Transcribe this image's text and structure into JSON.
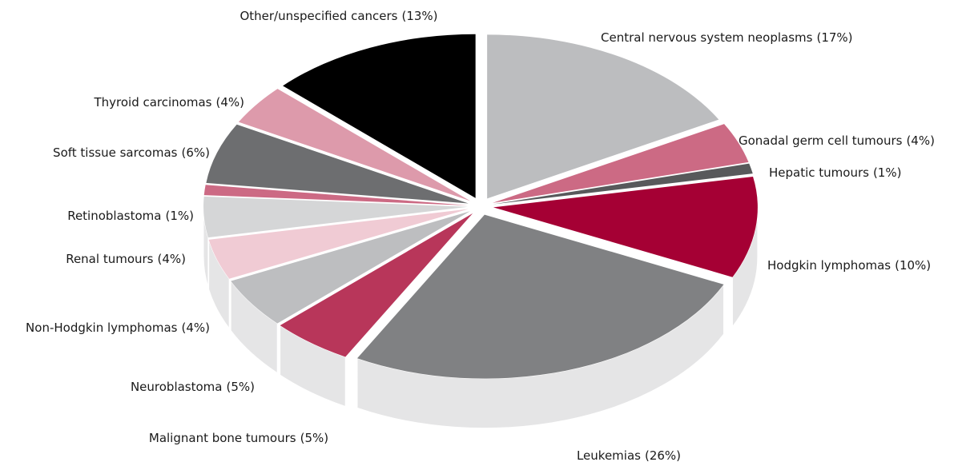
{
  "chart_data": {
    "type": "pie",
    "categories": [
      "Central nervous system neoplasms",
      "Gonadal germ cell tumours",
      "Hepatic tumours",
      "Hodgkin lymphomas",
      "Leukemias",
      "Malignant bone tumours",
      "Neuroblastoma",
      "Non-Hodgkin lymphomas",
      "Renal tumours",
      "Retinoblastoma",
      "Soft tissue sarcomas",
      "Thyroid carcinomas",
      "Other/unspecified cancers"
    ],
    "values": [
      17,
      4,
      1,
      10,
      26,
      5,
      5,
      4,
      4,
      1,
      6,
      4,
      13
    ],
    "value_labels": [
      "(17%)",
      "(4%)",
      "(1%)",
      "(10%)",
      "(26%)",
      "(5%)",
      "(5%)",
      "(4%)",
      "(4%)",
      "(1%)",
      "(6%)",
      "(4%)",
      "(13%)"
    ],
    "colors": [
      "#bcbdbf",
      "#cc6a84",
      "#58595b",
      "#a50034",
      "#808183",
      "#b8365a",
      "#bdbec0",
      "#f0cbd4",
      "#d5d6d7",
      "#cc6a84",
      "#6d6e70",
      "#dd9aab",
      "#000000"
    ]
  }
}
